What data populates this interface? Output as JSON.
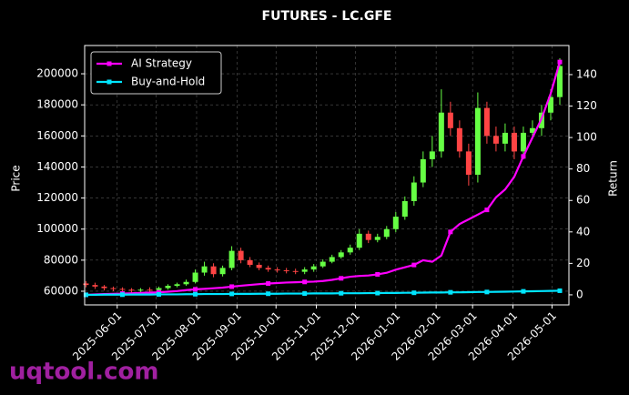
{
  "chart_data": {
    "type": "candlestick-with-returns",
    "title": "FUTURES - LC.GFE",
    "ylabel": "Price",
    "y2label": "Return",
    "watermark": "uqtool.com",
    "x": [
      "2025-05-08",
      "2025-05-15",
      "2025-05-22",
      "2025-05-29",
      "2025-06-05",
      "2025-06-12",
      "2025-06-19",
      "2025-06-26",
      "2025-07-03",
      "2025-07-10",
      "2025-07-17",
      "2025-07-24",
      "2025-07-31",
      "2025-08-07",
      "2025-08-14",
      "2025-08-21",
      "2025-08-28",
      "2025-09-04",
      "2025-09-11",
      "2025-09-18",
      "2025-09-25",
      "2025-10-02",
      "2025-10-09",
      "2025-10-16",
      "2025-10-23",
      "2025-10-30",
      "2025-11-06",
      "2025-11-13",
      "2025-11-20",
      "2025-11-27",
      "2025-12-04",
      "2025-12-11",
      "2025-12-18",
      "2025-12-25",
      "2026-01-01",
      "2026-01-08",
      "2026-01-15",
      "2026-01-22",
      "2026-01-29",
      "2026-02-05",
      "2026-02-12",
      "2026-02-19",
      "2026-02-26",
      "2026-03-05",
      "2026-03-12",
      "2026-03-19",
      "2026-03-26",
      "2026-04-02",
      "2026-04-09",
      "2026-04-16",
      "2026-04-23",
      "2026-04-30",
      "2026-05-07"
    ],
    "xlim": [
      "2025-05-07",
      "2026-05-14"
    ],
    "xticks": [
      "2025-06-01",
      "2025-07-01",
      "2025-08-01",
      "2025-09-01",
      "2025-10-01",
      "2025-11-01",
      "2025-12-01",
      "2026-01-01",
      "2026-02-01",
      "2026-03-01",
      "2026-04-01",
      "2026-05-01"
    ],
    "candles": {
      "up_color": "#66ff44",
      "down_color": "#ff4444",
      "open": [
        65000,
        64000,
        63000,
        62000,
        61500,
        61000,
        60500,
        61000,
        60800,
        62000,
        63500,
        64500,
        66000,
        72000,
        76000,
        71000,
        75000,
        86000,
        80000,
        77000,
        75000,
        74000,
        73500,
        73000,
        72500,
        74000,
        76000,
        79000,
        82000,
        85000,
        88000,
        97000,
        93000,
        95000,
        100000,
        108000,
        118000,
        130000,
        145000,
        150000,
        175000,
        165000,
        150000,
        135000,
        178000,
        160000,
        155000,
        162000,
        150000,
        162000,
        165000,
        175000,
        185000
      ],
      "high": [
        66500,
        65500,
        64000,
        63000,
        62500,
        62000,
        62000,
        62500,
        63000,
        64500,
        65500,
        67500,
        74000,
        79000,
        78000,
        76500,
        89000,
        88000,
        82000,
        78500,
        76500,
        75500,
        75000,
        74500,
        75500,
        77500,
        80500,
        83500,
        86500,
        90000,
        100000,
        99000,
        97000,
        102000,
        111000,
        121000,
        134000,
        150000,
        160000,
        190000,
        182000,
        170000,
        155000,
        188000,
        182000,
        166000,
        168000,
        166000,
        166000,
        170000,
        180000,
        190000,
        210000
      ],
      "low": [
        62500,
        61500,
        60500,
        60000,
        59500,
        59000,
        59500,
        59500,
        60000,
        61000,
        62500,
        63500,
        65000,
        70000,
        69000,
        69500,
        73500,
        78000,
        75500,
        73500,
        72500,
        72000,
        71500,
        71000,
        71000,
        72500,
        75000,
        78000,
        81000,
        83500,
        86500,
        91000,
        91500,
        93500,
        98000,
        106000,
        115000,
        127000,
        140000,
        146000,
        160000,
        146000,
        128000,
        130000,
        155000,
        150000,
        150000,
        145000,
        145000,
        158000,
        160000,
        170000,
        180000
      ],
      "close": [
        64000,
        63000,
        62000,
        61500,
        61000,
        60500,
        61000,
        60800,
        62000,
        63500,
        64500,
        66000,
        72000,
        76000,
        71000,
        75000,
        86000,
        80000,
        77000,
        75000,
        74000,
        73500,
        73000,
        72500,
        74000,
        76000,
        79000,
        82000,
        85000,
        88000,
        97000,
        93000,
        95000,
        100000,
        108000,
        118000,
        130000,
        145000,
        150000,
        175000,
        165000,
        150000,
        135000,
        178000,
        160000,
        155000,
        162000,
        150000,
        162000,
        165000,
        175000,
        185000,
        205000
      ]
    },
    "series": [
      {
        "name": "AI Strategy",
        "color": "#ff00ff",
        "axis": "y2",
        "values": [
          0,
          0.3,
          0.5,
          0.6,
          0.8,
          1,
          1.2,
          1.4,
          1.6,
          2,
          2.4,
          3,
          3.5,
          3.8,
          4.2,
          4.6,
          5.2,
          5.8,
          6.3,
          6.8,
          7.2,
          7.5,
          7.8,
          8,
          8.2,
          8.4,
          8.8,
          9.5,
          10.5,
          11.5,
          12,
          12.3,
          13,
          14,
          16,
          17.5,
          19,
          22,
          21,
          25,
          40,
          45,
          48,
          51,
          54,
          62,
          67,
          75,
          88,
          100,
          112,
          128,
          148
        ]
      },
      {
        "name": "Buy-and-Hold",
        "color": "#00e5ff",
        "axis": "y2",
        "values": [
          0,
          0,
          0.1,
          0.1,
          0.1,
          0.2,
          0.2,
          0.2,
          0.3,
          0.3,
          0.3,
          0.4,
          0.4,
          0.5,
          0.5,
          0.5,
          0.6,
          0.6,
          0.6,
          0.7,
          0.7,
          0.7,
          0.8,
          0.8,
          0.8,
          0.9,
          0.9,
          0.9,
          1,
          1,
          1,
          1.1,
          1.1,
          1.2,
          1.2,
          1.3,
          1.3,
          1.4,
          1.5,
          1.5,
          1.6,
          1.6,
          1.7,
          1.8,
          1.8,
          1.9,
          2,
          2.1,
          2.2,
          2.3,
          2.4,
          2.5,
          2.6
        ]
      }
    ],
    "ylim": [
      51200,
      218200
    ],
    "yticks": [
      60000,
      80000,
      100000,
      120000,
      140000,
      160000,
      180000,
      200000
    ],
    "y2lim": [
      -6.4,
      158.5
    ],
    "y2ticks": [
      0,
      20,
      40,
      60,
      80,
      100,
      120,
      140
    ],
    "grid": true,
    "legend": "upper left"
  }
}
